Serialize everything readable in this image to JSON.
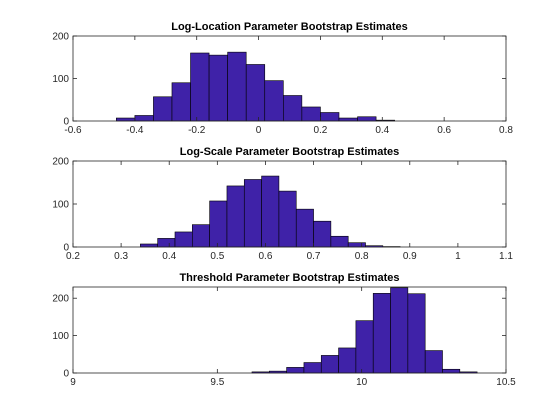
{
  "chart_data": [
    {
      "type": "bar",
      "title": "Log-Location Parameter Bootstrap Estimates",
      "xlabel": "",
      "ylabel": "",
      "xlim": [
        -0.6,
        0.8
      ],
      "ylim": [
        0,
        200
      ],
      "xticks": [
        "-0.6",
        "-0.4",
        "-0.2",
        "0",
        "0.2",
        "0.4",
        "0.6",
        "0.8"
      ],
      "yticks": [
        "0",
        "100",
        "200"
      ],
      "grid": false,
      "bar_color": "#3f22a8",
      "bin_edges": [
        -0.46,
        -0.4,
        -0.34,
        -0.28,
        -0.22,
        -0.16,
        -0.1,
        -0.04,
        0.02,
        0.08,
        0.14,
        0.2,
        0.26,
        0.32,
        0.38,
        0.44
      ],
      "values": [
        7,
        13,
        57,
        90,
        160,
        155,
        162,
        133,
        95,
        60,
        33,
        20,
        7,
        10,
        2
      ]
    },
    {
      "type": "bar",
      "title": "Log-Scale Parameter Bootstrap Estimates",
      "xlabel": "",
      "ylabel": "",
      "xlim": [
        0.2,
        1.1
      ],
      "ylim": [
        0,
        200
      ],
      "xticks": [
        "0.2",
        "0.3",
        "0.4",
        "0.5",
        "0.6",
        "0.7",
        "0.8",
        "0.9",
        "1",
        "1.1"
      ],
      "yticks": [
        "0",
        "100",
        "200"
      ],
      "grid": false,
      "bar_color": "#3f22a8",
      "bin_edges": [
        0.34,
        0.376,
        0.412,
        0.448,
        0.484,
        0.52,
        0.556,
        0.592,
        0.628,
        0.664,
        0.7,
        0.736,
        0.772,
        0.808,
        0.844,
        0.88
      ],
      "values": [
        7,
        20,
        35,
        52,
        107,
        142,
        157,
        165,
        130,
        88,
        60,
        25,
        10,
        3,
        1
      ]
    },
    {
      "type": "bar",
      "title": "Threshold Parameter Bootstrap Estimates",
      "xlabel": "",
      "ylabel": "",
      "xlim": [
        9,
        10.5
      ],
      "ylim": [
        0,
        230
      ],
      "xticks": [
        "9",
        "9.5",
        "10",
        "10.5"
      ],
      "yticks": [
        "0",
        "100",
        "200"
      ],
      "grid": false,
      "bar_color": "#3f22a8",
      "bin_edges": [
        9.62,
        9.68,
        9.74,
        9.8,
        9.86,
        9.92,
        9.98,
        10.04,
        10.1,
        10.16,
        10.22,
        10.28,
        10.34,
        10.4
      ],
      "values": [
        3,
        5,
        15,
        28,
        47,
        67,
        140,
        213,
        228,
        212,
        60,
        10,
        3
      ]
    }
  ]
}
